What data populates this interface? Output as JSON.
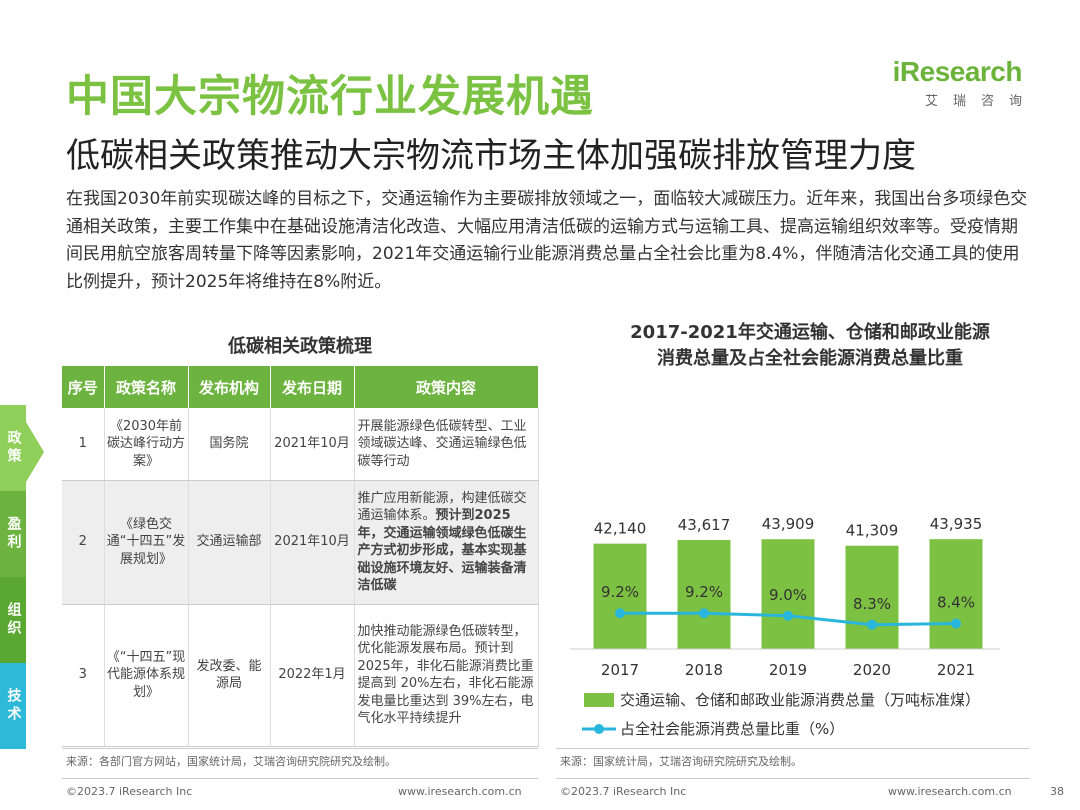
{
  "title": "中国大宗物流行业发展机遇",
  "subtitle": "低碳相关政策推动大宗物流市场主体加强碳排放管理力度",
  "logo": {
    "main": "iResearch",
    "sub": "艾瑞咨询"
  },
  "intro": "在我国2030年前实现碳达峰的目标之下，交通运输作为主要碳排放领域之一，面临较大减碳压力。近年来，我国出台多项绿色交通相关政策，主要工作集中在基础设施清洁化改造、大幅应用清洁低碳的运输方式与运输工具、提高运输组织效率等。受疫情期间民用航空旅客周转量下降等因素影响，2021年交通运输行业能源消费总量占全社会比重为8.4%，伴随清洁化交通工具的使用比例提升，预计2025年将维持在8%附近。",
  "sidebar": {
    "tabs": [
      "政策",
      "盈利",
      "组织",
      "技术"
    ],
    "colors": [
      "#8fcf5a",
      "#6cb33f",
      "#5aa832",
      "#2fb9d9"
    ]
  },
  "policy_table": {
    "title": "低碳相关政策梳理",
    "headers": [
      "序号",
      "政策名称",
      "发布机构",
      "发布日期",
      "政策内容"
    ],
    "rows": [
      {
        "no": "1",
        "name": "《2030年前碳达峰行动方案》",
        "org": "国务院",
        "date": "2021年10月",
        "content": "开展能源绿色低碳转型、工业领域碳达峰、交通运输绿色低碳等行动",
        "content_bold": ""
      },
      {
        "no": "2",
        "name": "《绿色交通“十四五”发展规划》",
        "org": "交通运输部",
        "date": "2021年10月",
        "content": "推广应用新能源，构建低碳交通运输体系。",
        "content_bold": "预计到2025年，交通运输领域绿色低碳生产方式初步形成，基本实现基础设施环境友好、运输装备清洁低碳"
      },
      {
        "no": "3",
        "name": "《“十四五”现代能源体系规划》",
        "org": "发改委、能源局",
        "date": "2022年1月",
        "content": "加快推动能源绿色低碳转型，优化能源发展布局。预计到 2025年，非化石能源消费比重提高到 20%左右，非化石能源发电量比重达到 39%左右，电气化水平持续提升",
        "content_bold": ""
      }
    ],
    "source": "来源：各部门官方网站，国家统计局，艾瑞咨询研究院研究及绘制。"
  },
  "chart_data": {
    "type": "bar",
    "title": "2017-2021年交通运输、仓储和邮政业能源消费总量及占全社会能源消费总量比重",
    "title_lines": [
      "2017-2021年交通运输、仓储和邮政业能源",
      "消费总量及占全社会能源消费总量比重"
    ],
    "categories": [
      "2017",
      "2018",
      "2019",
      "2020",
      "2021"
    ],
    "series": [
      {
        "name": "交通运输、仓储和邮政业能源消费总量（万吨标准煤）",
        "type": "bar",
        "values": [
          42140,
          43617,
          43909,
          41309,
          43935
        ],
        "labels": [
          "42,140",
          "43,617",
          "43,909",
          "41,309",
          "43,935"
        ],
        "color": "#7dc142"
      },
      {
        "name": "占全社会能源消费总量比重（%）",
        "type": "line",
        "values": [
          9.2,
          9.2,
          9.0,
          8.3,
          8.4
        ],
        "labels": [
          "9.2%",
          "9.2%",
          "9.0%",
          "8.3%",
          "8.4%"
        ],
        "color": "#29b6dc"
      }
    ],
    "ylim_bar": [
      0,
      100000
    ],
    "ylim_line": [
      0,
      20
    ],
    "legend_position": "bottom",
    "grid": false,
    "source": "来源：国家统计局，艾瑞咨询研究院研究及绘制。"
  },
  "footer": {
    "left_copyright": "©2023.7 iResearch Inc",
    "left_url": "www.iresearch.com.cn",
    "right_copyright": "©2023.7 iResearch Inc",
    "right_url": "www.iresearch.com.cn",
    "page": "38"
  }
}
